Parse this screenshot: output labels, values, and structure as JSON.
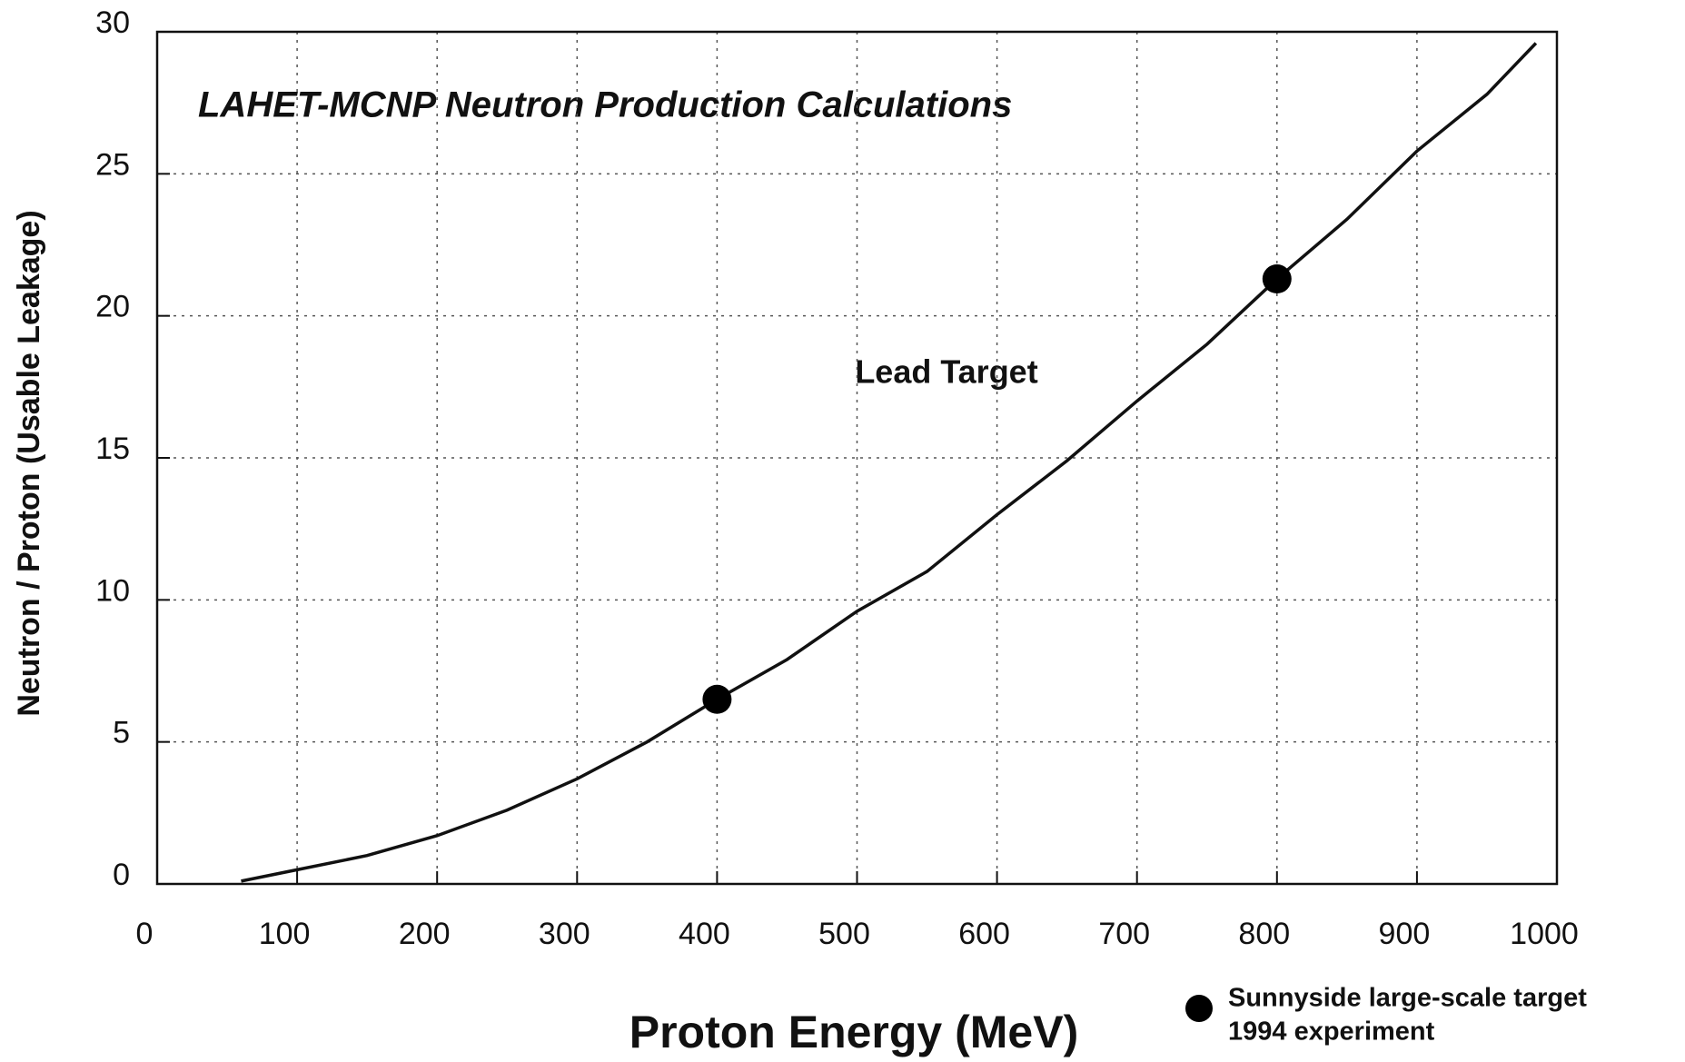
{
  "chart_data": {
    "type": "line",
    "title": "LAHET-MCNP Neutron Production Calculations",
    "annotation": "Lead Target",
    "x_label": "Proton Energy (MeV)",
    "y_label": "Neutron / Proton  (Usable Leakage)",
    "xlim": [
      0,
      1000
    ],
    "ylim": [
      0,
      30
    ],
    "xticks": [
      0,
      100,
      200,
      300,
      400,
      500,
      600,
      700,
      800,
      900,
      1000
    ],
    "yticks": [
      0,
      5,
      10,
      15,
      20,
      25,
      30
    ],
    "grid": true,
    "series": [
      {
        "color": "#111111",
        "x": [
          60,
          100,
          150,
          200,
          250,
          300,
          350,
          400,
          450,
          500,
          550,
          600,
          650,
          700,
          750,
          800,
          850,
          900,
          950,
          985
        ],
        "values": [
          0.1,
          0.5,
          1.0,
          1.7,
          2.6,
          3.7,
          5.0,
          6.5,
          7.9,
          9.6,
          11.0,
          13.0,
          14.9,
          17.0,
          19.0,
          21.3,
          23.4,
          25.8,
          27.8,
          29.6
        ]
      },
      {
        "type": "scatter",
        "color": "#000000",
        "name_lines": [
          "Sunnyside large-scale target",
          "1994 experiment"
        ],
        "x": [
          400,
          800
        ],
        "values": [
          6.5,
          21.3
        ]
      }
    ]
  }
}
